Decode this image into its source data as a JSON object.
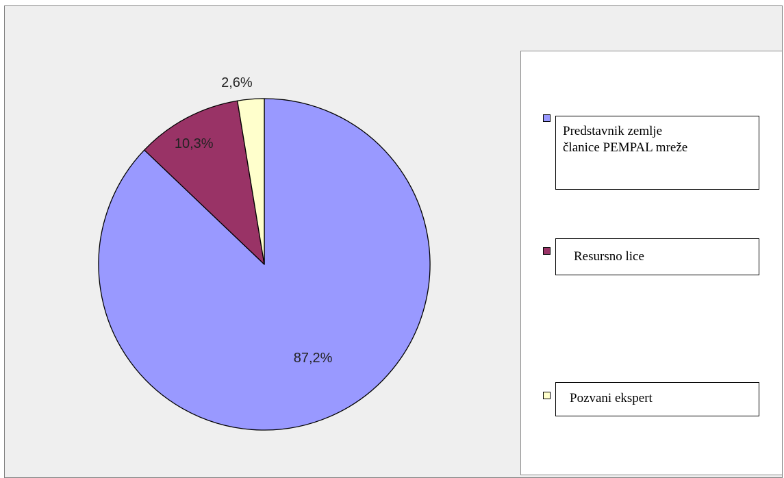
{
  "chart_data": {
    "type": "pie",
    "title": "",
    "start_angle_deg": 0,
    "direction": "clockwise",
    "series": [
      {
        "name": "Predstavnik zemlje\nčlanice PEMPAL mreže",
        "value": 87.2,
        "label": "87,2%",
        "color": "#9999ff"
      },
      {
        "name": "Resursno lice",
        "value": 10.3,
        "label": "10,3%",
        "color": "#993366"
      },
      {
        "name": "Pozvani ekspert",
        "value": 2.6,
        "label": "2,6%",
        "color": "#ffffcc"
      }
    ],
    "legend_position": "right",
    "border_color": "#000000"
  }
}
